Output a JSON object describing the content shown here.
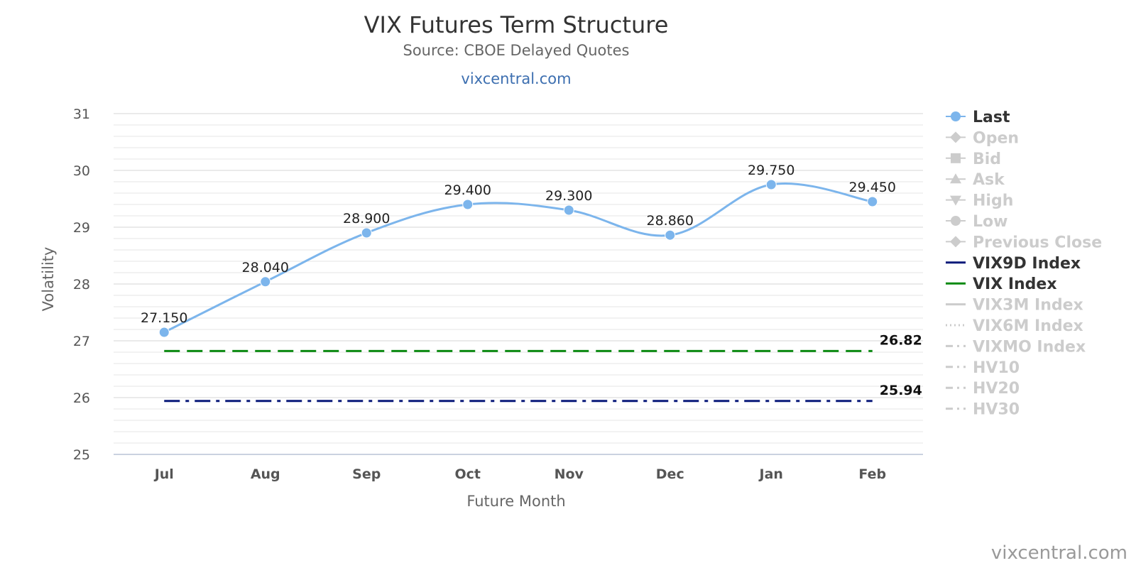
{
  "chart_data": {
    "type": "line",
    "title": "VIX Futures Term Structure",
    "subtitle": "Source: CBOE Delayed Quotes",
    "link_text": "vixcentral.com",
    "credit": "vixcentral.com",
    "xlabel": "Future Month",
    "ylabel": "Volatility",
    "ylim": [
      25,
      31
    ],
    "y_major_ticks": [
      25,
      26,
      27,
      28,
      29,
      30,
      31
    ],
    "y_minor_step": 0.2,
    "categories": [
      "Jul",
      "Aug",
      "Sep",
      "Oct",
      "Nov",
      "Dec",
      "Jan",
      "Feb"
    ],
    "series": [
      {
        "name": "Last",
        "values": [
          27.15,
          28.04,
          28.9,
          29.4,
          29.3,
          28.86,
          29.75,
          29.45
        ],
        "labels": [
          "27.150",
          "28.040",
          "28.900",
          "29.400",
          "29.300",
          "28.860",
          "29.750",
          "29.450"
        ],
        "color": "#7cb5ec",
        "style": "smooth-line-markers"
      },
      {
        "name": "VIX Index",
        "value": 26.82,
        "label": "26.82",
        "color": "#0c8a12",
        "style": "dashed"
      },
      {
        "name": "VIX9D Index",
        "value": 25.94,
        "label": "25.94",
        "color": "#0a1a7a",
        "style": "dash-dot"
      }
    ],
    "legend": {
      "position": "right",
      "items": [
        {
          "name": "Last",
          "active": true,
          "symbol": "circle",
          "color": "#7cb5ec"
        },
        {
          "name": "Open",
          "active": false,
          "symbol": "diamond"
        },
        {
          "name": "Bid",
          "active": false,
          "symbol": "square"
        },
        {
          "name": "Ask",
          "active": false,
          "symbol": "triangle"
        },
        {
          "name": "High",
          "active": false,
          "symbol": "triangle-down"
        },
        {
          "name": "Low",
          "active": false,
          "symbol": "circle"
        },
        {
          "name": "Previous Close",
          "active": false,
          "symbol": "diamond"
        },
        {
          "name": "VIX9D Index",
          "active": true,
          "symbol": "line",
          "color": "#0a1a7a"
        },
        {
          "name": "VIX Index",
          "active": true,
          "symbol": "line",
          "color": "#0c8a12"
        },
        {
          "name": "VIX3M Index",
          "active": false,
          "symbol": "line"
        },
        {
          "name": "VIX6M Index",
          "active": false,
          "symbol": "dotted"
        },
        {
          "name": "VIXMO Index",
          "active": false,
          "symbol": "dash-dot"
        },
        {
          "name": "HV10",
          "active": false,
          "symbol": "dash-dot"
        },
        {
          "name": "HV20",
          "active": false,
          "symbol": "dash-dot"
        },
        {
          "name": "HV30",
          "active": false,
          "symbol": "dash-dot"
        }
      ],
      "inactive_color": "#cccccc",
      "active_text_color": "#333333"
    },
    "grid": true
  }
}
